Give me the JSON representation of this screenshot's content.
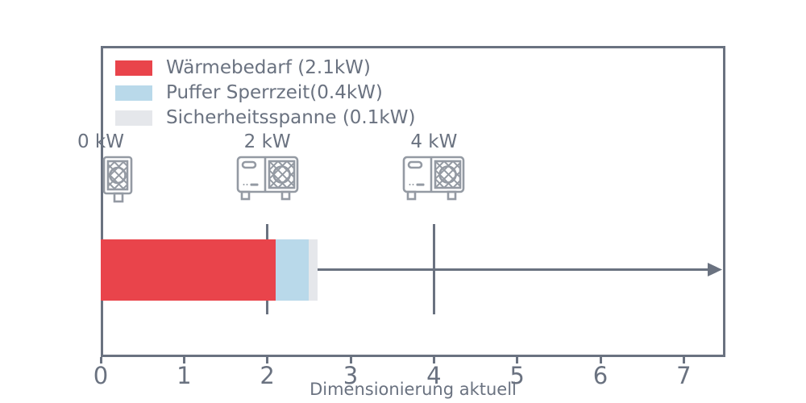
{
  "chart_data": {
    "type": "bar",
    "orientation": "horizontal",
    "title": "",
    "xlabel": "Dimensionierung aktuell",
    "ylabel": "",
    "xlim": [
      0,
      7.5
    ],
    "x_ticks": [
      0,
      1,
      2,
      3,
      4,
      5,
      6,
      7
    ],
    "grid": false,
    "legend_position": "upper-left",
    "bar": {
      "segments": [
        {
          "name": "waermebedarf",
          "label": "Wärmebedarf (2.1kW)",
          "value_kw": 2.1,
          "start": 0.0,
          "end": 2.1,
          "color": "#e9444b"
        },
        {
          "name": "puffer-sperrzeit",
          "label": "Puffer Sperrzeit(0.4kW)",
          "value_kw": 0.4,
          "start": 2.1,
          "end": 2.5,
          "color": "#b9d9ea"
        },
        {
          "name": "sicherheitsspanne",
          "label": "Sicherheitsspanne (0.1kW)",
          "value_kw": 0.1,
          "start": 2.5,
          "end": 2.6,
          "color": "#e5e7eb"
        }
      ]
    },
    "markers": [
      {
        "label": "0 kW",
        "x": 0,
        "icon": "heat-pump-small"
      },
      {
        "label": "2 kW",
        "x": 2,
        "icon": "heat-pump-large"
      },
      {
        "label": "4 kW",
        "x": 4,
        "icon": "heat-pump-large"
      }
    ],
    "reference_lines_x": [
      2,
      4
    ],
    "axis_arrow": true
  },
  "colors": {
    "axis": "#6a7280",
    "icon": "#949aa3",
    "background": "#ffffff"
  }
}
